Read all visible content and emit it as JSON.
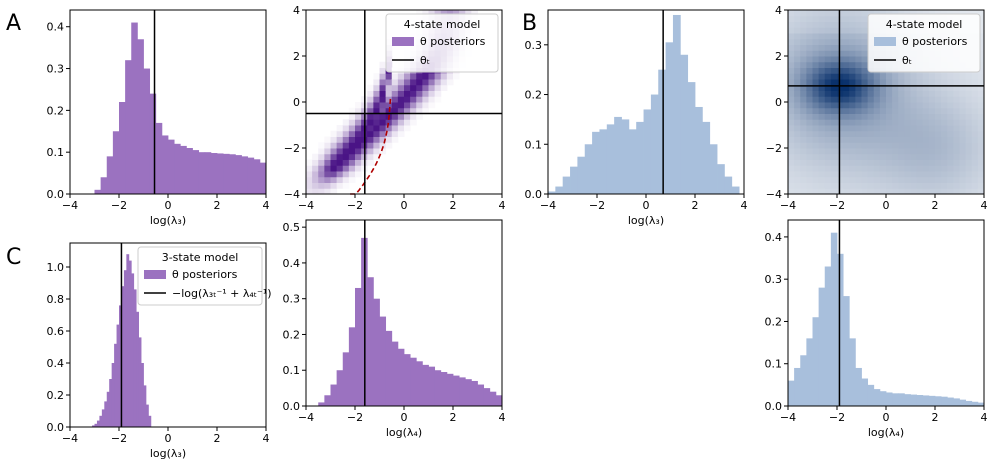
{
  "panel_letters": [
    "A",
    "B",
    "C"
  ],
  "colors": {
    "purple": "#9b72c0",
    "blue": "#a8bfdc",
    "heat_purple": "#4a1486",
    "heat_blue": "#08306b",
    "curve": "#b00000"
  },
  "legend_text": {
    "model4": "4-state model",
    "model3": "3-state model",
    "posteriors": "θ posteriors",
    "theta_t": "θₜ",
    "combo": "−log(λ₃ₜ⁻¹ + λ₄ₜ⁻¹)"
  },
  "chart_data": [
    {
      "id": "A1",
      "type": "bar",
      "xlabel": "log(λ₃)",
      "ylabel": "",
      "xlim": [
        -4,
        4
      ],
      "ylim": [
        0,
        0.44
      ],
      "xticks": [
        -4,
        -2,
        0,
        2,
        4
      ],
      "yticks": [
        0.0,
        0.1,
        0.2,
        0.3,
        0.4
      ],
      "bin_edges_start": -3.0,
      "bin_width": 0.25,
      "values": [
        0.01,
        0.04,
        0.09,
        0.15,
        0.22,
        0.32,
        0.41,
        0.37,
        0.3,
        0.24,
        0.17,
        0.14,
        0.13,
        0.12,
        0.115,
        0.11,
        0.105,
        0.1,
        0.1,
        0.098,
        0.097,
        0.096,
        0.095,
        0.093,
        0.09,
        0.087,
        0.083,
        0.075,
        0.065,
        0.055,
        0.04,
        0.03
      ],
      "vline": -0.55,
      "legend": null
    },
    {
      "id": "A2",
      "type": "heatmap",
      "xlabel": "",
      "ylabel": "",
      "xlim": [
        -4,
        4
      ],
      "ylim": [
        -4,
        4
      ],
      "xticks": [
        -4,
        -2,
        0,
        2,
        4
      ],
      "yticks": [
        -4,
        -2,
        0,
        2,
        4
      ],
      "vline": -1.6,
      "hline": -0.5,
      "curve": "-log(exp(-x)-exp(0.5))",
      "legend": {
        "title": "4-state model",
        "entries": [
          "θ posteriors",
          "θₜ"
        ],
        "placement": "top-right"
      }
    },
    {
      "id": "B1",
      "type": "bar",
      "xlabel": "log(λ₃)",
      "ylabel": "",
      "xlim": [
        -4,
        4
      ],
      "ylim": [
        0,
        0.37
      ],
      "xticks": [
        -4,
        -2,
        0,
        2,
        4
      ],
      "yticks": [
        0.0,
        0.1,
        0.2,
        0.3
      ],
      "bin_edges_start": -4.0,
      "bin_width": 0.3,
      "values": [
        0.005,
        0.015,
        0.035,
        0.055,
        0.075,
        0.1,
        0.125,
        0.13,
        0.14,
        0.155,
        0.15,
        0.13,
        0.145,
        0.17,
        0.2,
        0.25,
        0.305,
        0.36,
        0.28,
        0.225,
        0.175,
        0.145,
        0.1,
        0.06,
        0.035,
        0.015
      ],
      "vline": 0.7,
      "legend": null
    },
    {
      "id": "B2",
      "type": "heatmap",
      "xlabel": "",
      "ylabel": "",
      "xlim": [
        -4,
        4
      ],
      "ylim": [
        -4,
        4
      ],
      "xticks": [
        -4,
        -2,
        0,
        2,
        4
      ],
      "yticks": [
        -4,
        -2,
        0,
        2,
        4
      ],
      "vline": -1.9,
      "hline": 0.7,
      "legend": {
        "title": "4-state model",
        "entries": [
          "θ posteriors",
          "θₜ"
        ],
        "placement": "top-right"
      }
    },
    {
      "id": "C1",
      "type": "bar",
      "xlabel": "log(λ₃)",
      "ylabel": "",
      "xlim": [
        -4,
        4
      ],
      "ylim": [
        0,
        1.15
      ],
      "xticks": [
        -4,
        -2,
        0,
        2,
        4
      ],
      "yticks": [
        0.0,
        0.2,
        0.4,
        0.6,
        0.8,
        1.0
      ],
      "bin_edges_start": -3.1,
      "bin_width": 0.1,
      "values": [
        0.01,
        0.02,
        0.04,
        0.07,
        0.11,
        0.16,
        0.22,
        0.3,
        0.4,
        0.52,
        0.64,
        0.76,
        0.88,
        0.98,
        1.08,
        1.04,
        0.96,
        0.86,
        0.72,
        0.56,
        0.4,
        0.26,
        0.14,
        0.07
      ],
      "vline": -1.9,
      "legend": {
        "title": "3-state model",
        "entries": [
          "θ posteriors",
          "−log(λ₃ₜ⁻¹ + λ₄ₜ⁻¹)"
        ],
        "placement": "top-right"
      }
    },
    {
      "id": "C2",
      "type": "bar",
      "xlabel": "log(λ₄)",
      "ylabel": "",
      "xlim": [
        -4,
        4
      ],
      "ylim": [
        0,
        0.52
      ],
      "xticks": [
        -4,
        -2,
        0,
        2,
        4
      ],
      "yticks": [
        0.0,
        0.1,
        0.2,
        0.3,
        0.4,
        0.5
      ],
      "bin_edges_start": -3.5,
      "bin_width": 0.25,
      "values": [
        0.01,
        0.03,
        0.06,
        0.1,
        0.15,
        0.22,
        0.33,
        0.47,
        0.36,
        0.3,
        0.25,
        0.21,
        0.18,
        0.16,
        0.145,
        0.135,
        0.125,
        0.115,
        0.11,
        0.1,
        0.095,
        0.09,
        0.085,
        0.08,
        0.075,
        0.07,
        0.06,
        0.05,
        0.04,
        0.03
      ],
      "vline": -1.6,
      "legend": null
    },
    {
      "id": "B3",
      "type": "bar",
      "xlabel": "log(λ₄)",
      "ylabel": "",
      "xlim": [
        -4,
        4
      ],
      "ylim": [
        0,
        0.44
      ],
      "xticks": [
        -4,
        -2,
        0,
        2,
        4
      ],
      "yticks": [
        0.0,
        0.1,
        0.2,
        0.3,
        0.4
      ],
      "bin_edges_start": -4.0,
      "bin_width": 0.25,
      "values": [
        0.06,
        0.09,
        0.12,
        0.16,
        0.21,
        0.28,
        0.33,
        0.41,
        0.36,
        0.26,
        0.16,
        0.09,
        0.065,
        0.05,
        0.04,
        0.035,
        0.032,
        0.03,
        0.03,
        0.028,
        0.027,
        0.026,
        0.025,
        0.024,
        0.023,
        0.022,
        0.02,
        0.018,
        0.015,
        0.012,
        0.01,
        0.008
      ],
      "vline": -1.9,
      "legend": null
    }
  ]
}
